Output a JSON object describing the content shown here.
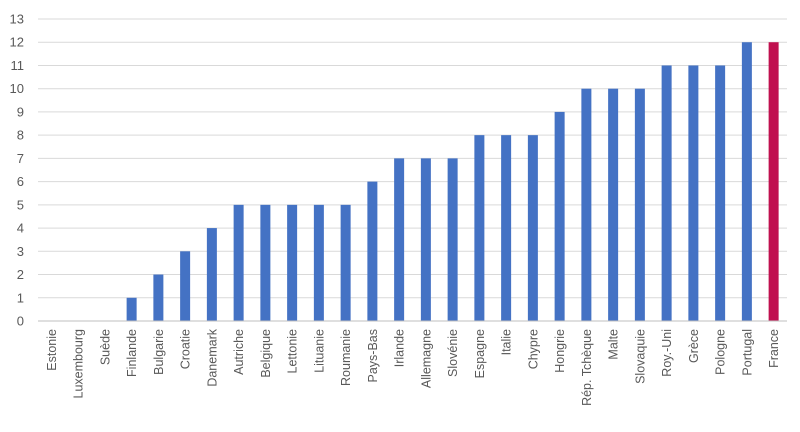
{
  "chart_data": {
    "type": "bar",
    "title": "",
    "xlabel": "",
    "ylabel": "",
    "ylim": [
      0,
      13
    ],
    "yticks": [
      0,
      1,
      2,
      3,
      4,
      5,
      6,
      7,
      8,
      9,
      10,
      11,
      12,
      13
    ],
    "grid": true,
    "legend": "none",
    "categories": [
      "Estonie",
      "Luxembourg",
      "Suède",
      "Finlande",
      "Bulgarie",
      "Croatie",
      "Danemark",
      "Autriche",
      "Belgique",
      "Lettonie",
      "Lituanie",
      "Roumanie",
      "Pays-Bas",
      "Irlande",
      "Allemagne",
      "Slovénie",
      "Espagne",
      "Italie",
      "Chypre",
      "Hongrie",
      "Rép. Tchèque",
      "Malte",
      "Slovaquie",
      "Roy.-Uni",
      "Grèce",
      "Pologne",
      "Portugal",
      "France"
    ],
    "values": [
      0,
      0,
      0,
      1,
      2,
      3,
      4,
      5,
      5,
      5,
      5,
      5,
      6,
      7,
      7,
      7,
      8,
      8,
      8,
      9,
      10,
      10,
      10,
      11,
      11,
      11,
      12,
      12
    ],
    "colors": {
      "default": "#4472c4",
      "highlight": "#c0104f",
      "grid": "#d9d9d9",
      "axis": "#bfbfbf"
    },
    "highlight_category": "France"
  }
}
